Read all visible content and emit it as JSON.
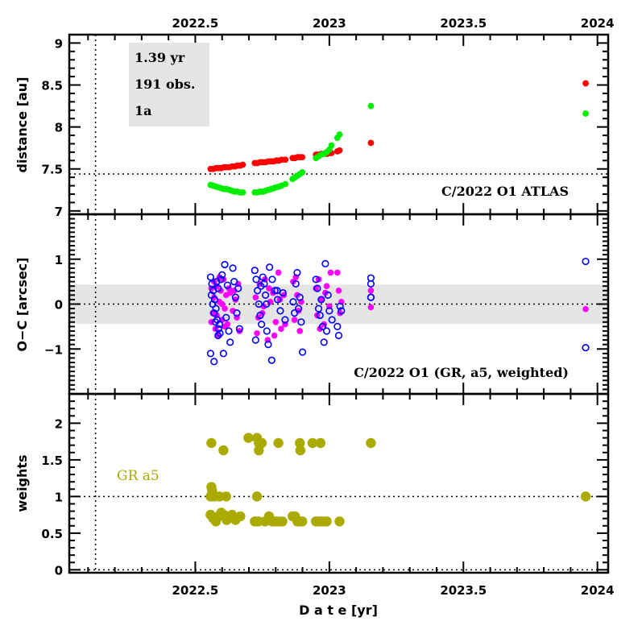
{
  "chart_data": [
    {
      "type": "scatter",
      "panel": "distance",
      "ylabel": "distance [au]",
      "xlim": [
        2022.03,
        2024.04
      ],
      "ylim": [
        6.96,
        9.1
      ],
      "yticks": [
        7,
        7.5,
        8,
        8.5,
        9
      ],
      "ytick_labels": [
        "7",
        "7.5",
        "8",
        "8.5",
        "9"
      ],
      "xticks_top": [
        2022.5,
        2023,
        2023.5,
        2024
      ],
      "xtick_labels_top": [
        "2022.5",
        "2023",
        "2023.5",
        "2024"
      ],
      "reference_lines": {
        "horizontal": 7.44,
        "vertical": 2022.128
      },
      "annotation": "C/2022 O1 ATLAS",
      "info_box": [
        "1.39 yr",
        "191 obs.",
        "1a"
      ],
      "series": [
        {
          "name": "red-distance",
          "color": "#ff0000",
          "x": [
            2022.557,
            2022.567,
            2022.577,
            2022.587,
            2022.597,
            2022.607,
            2022.617,
            2022.627,
            2022.637,
            2022.647,
            2022.657,
            2022.667,
            2022.677,
            2022.722,
            2022.732,
            2022.742,
            2022.752,
            2022.762,
            2022.772,
            2022.782,
            2022.792,
            2022.802,
            2022.812,
            2022.822,
            2022.836,
            2022.863,
            2022.872,
            2022.881,
            2022.89,
            2022.899,
            2022.95,
            2022.96,
            2022.97,
            2022.98,
            2022.99,
            2023.0,
            2023.008,
            2023.03,
            2023.038,
            2023.155,
            2023.956
          ],
          "y": [
            7.5,
            7.5,
            7.51,
            7.51,
            7.51,
            7.52,
            7.52,
            7.52,
            7.53,
            7.53,
            7.54,
            7.54,
            7.55,
            7.57,
            7.57,
            7.58,
            7.58,
            7.58,
            7.59,
            7.59,
            7.59,
            7.6,
            7.6,
            7.61,
            7.61,
            7.63,
            7.63,
            7.64,
            7.64,
            7.64,
            7.67,
            7.67,
            7.68,
            7.68,
            7.68,
            7.69,
            7.69,
            7.71,
            7.72,
            7.81,
            8.52
          ]
        },
        {
          "name": "green-distance",
          "color": "#00ee00",
          "x": [
            2022.557,
            2022.567,
            2022.577,
            2022.587,
            2022.597,
            2022.607,
            2022.617,
            2022.627,
            2022.637,
            2022.647,
            2022.657,
            2022.667,
            2022.677,
            2022.722,
            2022.732,
            2022.742,
            2022.752,
            2022.762,
            2022.772,
            2022.782,
            2022.792,
            2022.802,
            2022.812,
            2022.822,
            2022.836,
            2022.863,
            2022.872,
            2022.881,
            2022.89,
            2022.899,
            2022.95,
            2022.96,
            2022.97,
            2022.98,
            2022.99,
            2023.0,
            2023.008,
            2023.03,
            2023.038,
            2023.155,
            2023.956
          ],
          "y": [
            7.31,
            7.3,
            7.29,
            7.28,
            7.27,
            7.26,
            7.26,
            7.25,
            7.24,
            7.23,
            7.23,
            7.22,
            7.22,
            7.22,
            7.22,
            7.23,
            7.23,
            7.24,
            7.25,
            7.26,
            7.27,
            7.28,
            7.29,
            7.3,
            7.32,
            7.38,
            7.4,
            7.42,
            7.44,
            7.46,
            7.63,
            7.65,
            7.67,
            7.68,
            7.7,
            7.73,
            7.78,
            7.87,
            7.91,
            8.25,
            8.16
          ]
        }
      ]
    },
    {
      "type": "scatter",
      "panel": "residuals",
      "ylabel": "O−C [arcsec]",
      "xlim": [
        2022.03,
        2024.04
      ],
      "ylim": [
        -2.0,
        2.0
      ],
      "yticks": [
        -1,
        0,
        1
      ],
      "ytick_labels": [
        "−1",
        "0",
        "1"
      ],
      "band": [
        -0.44,
        0.43
      ],
      "reference_lines": {
        "horizontal": 0,
        "vertical": 2022.128
      },
      "annotation": "C/2022 O1 (GR, a5, weighted)",
      "series": [
        {
          "name": "magenta-filled",
          "color": "#ff00ff",
          "marker": "filled-circle",
          "x": [
            2022.56,
            2022.565,
            2022.57,
            2022.575,
            2022.58,
            2022.585,
            2022.59,
            2022.595,
            2022.6,
            2022.605,
            2022.61,
            2022.615,
            2022.62,
            2022.63,
            2022.64,
            2022.65,
            2022.66,
            2022.665,
            2022.56,
            2022.57,
            2022.58,
            2022.59,
            2022.6,
            2022.61,
            2022.625,
            2022.645,
            2022.655,
            2022.725,
            2022.73,
            2022.74,
            2022.75,
            2022.76,
            2022.77,
            2022.78,
            2022.79,
            2022.8,
            2022.81,
            2022.82,
            2022.83,
            2022.735,
            2022.755,
            2022.775,
            2022.795,
            2022.815,
            2022.835,
            2022.865,
            2022.87,
            2022.88,
            2022.89,
            2022.895,
            2022.875,
            2022.885,
            2022.95,
            2022.955,
            2022.96,
            2022.97,
            2022.98,
            2022.99,
            2023.0,
            2023.005,
            2022.965,
            2022.985,
            2023.03,
            2023.035,
            2023.04,
            2023.045,
            2023.155,
            2023.155,
            2023.956
          ],
          "y": [
            0.35,
            -0.2,
            0.15,
            -0.55,
            0.4,
            -0.7,
            0.05,
            0.3,
            -0.35,
            0.55,
            -0.1,
            0.2,
            -0.45,
            0.25,
            -0.15,
            0.1,
            0.45,
            -0.6,
            -0.4,
            0.5,
            -0.25,
            0.6,
            0.0,
            -0.5,
            0.35,
            0.3,
            -0.3,
            0.15,
            -0.65,
            0.45,
            -0.2,
            0.55,
            -0.8,
            0.05,
            0.25,
            -0.4,
            0.7,
            -0.55,
            0.2,
            -0.3,
            -0.05,
            0.35,
            -0.7,
            0.1,
            -0.45,
            0.5,
            -0.35,
            0.2,
            -0.6,
            0.05,
            0.6,
            -0.15,
            0.35,
            -0.25,
            0.55,
            0.1,
            -0.45,
            0.4,
            -0.05,
            0.7,
            -0.55,
            0.25,
            0.7,
            0.3,
            -0.2,
            0.05,
            0.3,
            -0.07,
            -0.11
          ]
        },
        {
          "name": "blue-open",
          "color": "#0000ff",
          "marker": "open-circle",
          "x": [
            2022.557,
            2022.562,
            2022.567,
            2022.572,
            2022.577,
            2022.582,
            2022.587,
            2022.592,
            2022.56,
            2022.565,
            2022.57,
            2022.575,
            2022.58,
            2022.585,
            2022.59,
            2022.595,
            2022.557,
            2022.57,
            2022.585,
            2022.6,
            2022.61,
            2022.62,
            2022.63,
            2022.64,
            2022.645,
            2022.65,
            2022.655,
            2022.66,
            2022.665,
            2022.605,
            2022.615,
            2022.625,
            2022.722,
            2022.727,
            2022.732,
            2022.737,
            2022.742,
            2022.747,
            2022.752,
            2022.757,
            2022.762,
            2022.767,
            2022.772,
            2022.777,
            2022.787,
            2022.797,
            2022.807,
            2022.817,
            2022.827,
            2022.835,
            2022.725,
            2022.745,
            2022.765,
            2022.785,
            2022.805,
            2022.865,
            2022.87,
            2022.875,
            2022.88,
            2022.885,
            2022.89,
            2022.895,
            2022.9,
            2022.95,
            2022.955,
            2022.96,
            2022.965,
            2022.97,
            2022.975,
            2022.98,
            2022.99,
            2023.0,
            2023.01,
            2022.985,
            2022.995,
            2023.03,
            2023.035,
            2023.04,
            2023.045,
            2023.155,
            2023.155,
            2023.155,
            2023.155,
            2023.956,
            2023.956
          ],
          "y": [
            0.6,
            0.45,
            0.3,
            0.1,
            -0.1,
            -0.35,
            -0.55,
            -0.65,
            0.2,
            0.0,
            -0.2,
            -0.4,
            0.5,
            0.35,
            -0.45,
            0.55,
            -1.1,
            -1.28,
            -0.7,
            0.65,
            0.88,
            0.42,
            -0.85,
            0.8,
            0.5,
            0.15,
            -0.2,
            0.35,
            -0.55,
            -1.1,
            -0.3,
            -0.6,
            0.75,
            0.55,
            0.3,
            0.0,
            -0.25,
            -0.45,
            0.6,
            0.45,
            0.2,
            -0.6,
            -0.9,
            0.82,
            0.55,
            0.3,
            0.1,
            -0.15,
            0.25,
            -0.35,
            -0.8,
            0.4,
            0.0,
            -1.25,
            0.3,
            0.05,
            -0.2,
            0.45,
            0.7,
            -0.1,
            0.15,
            -0.4,
            -1.07,
            0.55,
            0.35,
            -0.1,
            -0.25,
            0.1,
            -0.5,
            -0.85,
            -0.6,
            -0.15,
            -0.35,
            0.9,
            0.2,
            -0.5,
            -0.7,
            -0.05,
            -0.15,
            0.58,
            0.45,
            0.15,
            0.15,
            0.95,
            -0.97
          ]
        }
      ]
    },
    {
      "type": "scatter",
      "panel": "weights",
      "ylabel": "weights",
      "xlabel": "D a t e [yr]",
      "xlim": [
        2022.03,
        2024.04
      ],
      "ylim": [
        -0.04,
        2.4
      ],
      "yticks": [
        0,
        0.5,
        1,
        1.5,
        2
      ],
      "ytick_labels": [
        "0",
        "0.5",
        "1",
        "1.5",
        "2"
      ],
      "xticks_bottom": [
        2022.5,
        2023,
        2023.5,
        2024
      ],
      "xtick_labels_bottom": [
        "2022.5",
        "2023",
        "2023.5",
        "2024"
      ],
      "reference_lines": {
        "horizontal": [
          1,
          0
        ],
        "vertical": 2022.128
      },
      "legend_label": "GR a5",
      "series": [
        {
          "name": "weights",
          "color": "#aaaa00",
          "x": [
            2022.56,
            2022.605,
            2022.698,
            2022.73,
            2022.737,
            2022.748,
            2022.737,
            2022.81,
            2022.89,
            2022.892,
            2022.937,
            2022.967,
            2023.155,
            2022.56,
            2022.563,
            2022.557,
            2022.57,
            2022.59,
            2022.615,
            2022.73,
            2022.557,
            2022.567,
            2022.577,
            2022.587,
            2022.597,
            2022.607,
            2022.617,
            2022.627,
            2022.637,
            2022.65,
            2022.668,
            2022.722,
            2022.735,
            2022.76,
            2022.775,
            2022.787,
            2022.8,
            2022.812,
            2022.825,
            2022.863,
            2022.872,
            2022.881,
            2022.89,
            2022.899,
            2022.95,
            2022.96,
            2022.97,
            2022.98,
            2022.99,
            2023.038,
            2023.956
          ],
          "y": [
            1.73,
            1.63,
            1.8,
            1.8,
            1.73,
            1.73,
            1.63,
            1.73,
            1.73,
            1.63,
            1.73,
            1.73,
            1.73,
            1.13,
            1.08,
            1.0,
            1.0,
            1.0,
            1.0,
            1.0,
            0.75,
            0.7,
            0.66,
            0.73,
            0.78,
            0.75,
            0.68,
            0.73,
            0.75,
            0.68,
            0.73,
            0.66,
            0.66,
            0.66,
            0.73,
            0.66,
            0.66,
            0.66,
            0.66,
            0.73,
            0.73,
            0.66,
            0.66,
            0.66,
            0.66,
            0.66,
            0.66,
            0.66,
            0.66,
            0.66,
            1.0
          ]
        }
      ]
    }
  ]
}
